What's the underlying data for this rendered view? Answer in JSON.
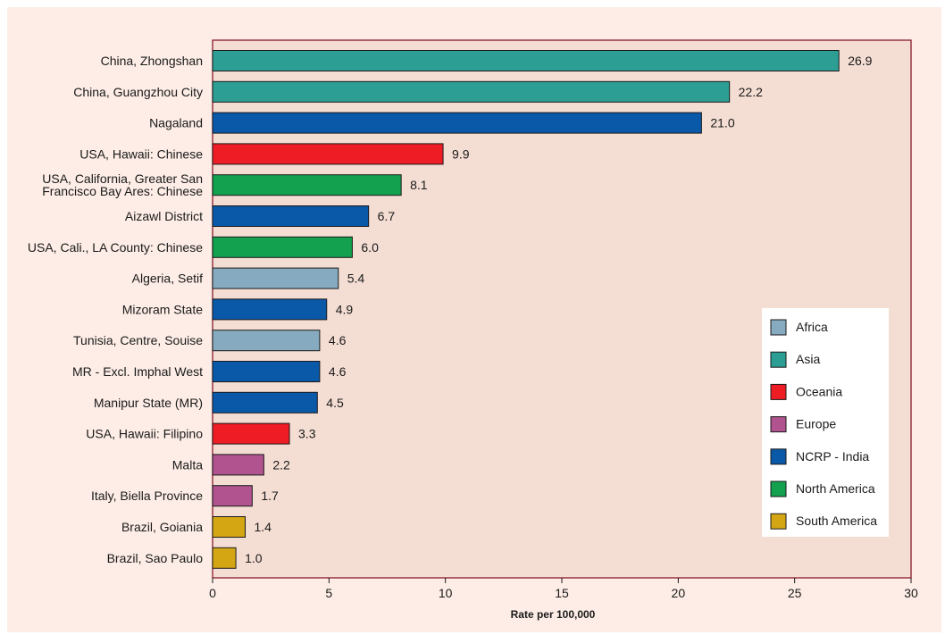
{
  "chart_data": {
    "type": "bar",
    "orientation": "horizontal",
    "title": "",
    "xlabel": "Rate per 100,000",
    "ylabel": "",
    "xlim": [
      0,
      30
    ],
    "xticks": [
      0,
      5,
      10,
      15,
      20,
      25,
      30
    ],
    "grid": false,
    "legend_position": "bottom-right",
    "colors": {
      "Africa": "#86aabf",
      "Asia": "#2d9e94",
      "Oceania": "#ee1c25",
      "Europe": "#b0538e",
      "NCRP - India": "#0a58a8",
      "North America": "#13a150",
      "South America": "#d4a614"
    },
    "legend": [
      "Africa",
      "Asia",
      "Oceania",
      "Europe",
      "NCRP - India",
      "North America",
      "South America"
    ],
    "bars": [
      {
        "label": [
          "China, Zhongshan"
        ],
        "value": 26.9,
        "value_label": "26.9",
        "region": "Asia"
      },
      {
        "label": [
          "China, Guangzhou City"
        ],
        "value": 22.2,
        "value_label": "22.2",
        "region": "Asia"
      },
      {
        "label": [
          "Nagaland"
        ],
        "value": 21.0,
        "value_label": "21.0",
        "region": "NCRP - India"
      },
      {
        "label": [
          "USA, Hawaii: Chinese"
        ],
        "value": 9.9,
        "value_label": "9.9",
        "region": "Oceania"
      },
      {
        "label": [
          "USA, California, Greater San",
          "Francisco Bay Ares: Chinese"
        ],
        "value": 8.1,
        "value_label": "8.1",
        "region": "North America"
      },
      {
        "label": [
          "Aizawl District"
        ],
        "value": 6.7,
        "value_label": "6.7",
        "region": "NCRP - India"
      },
      {
        "label": [
          "USA, Cali., LA County: Chinese"
        ],
        "value": 6.0,
        "value_label": "6.0",
        "region": "North America"
      },
      {
        "label": [
          "Algeria, Setif"
        ],
        "value": 5.4,
        "value_label": "5.4",
        "region": "Africa"
      },
      {
        "label": [
          "Mizoram State"
        ],
        "value": 4.9,
        "value_label": "4.9",
        "region": "NCRP - India"
      },
      {
        "label": [
          "Tunisia, Centre, Souise"
        ],
        "value": 4.6,
        "value_label": "4.6",
        "region": "Africa"
      },
      {
        "label": [
          "MR - Excl. Imphal West"
        ],
        "value": 4.6,
        "value_label": "4.6",
        "region": "NCRP - India"
      },
      {
        "label": [
          "Manipur State (MR)"
        ],
        "value": 4.5,
        "value_label": "4.5",
        "region": "NCRP - India"
      },
      {
        "label": [
          "USA, Hawaii: Filipino"
        ],
        "value": 3.3,
        "value_label": "3.3",
        "region": "Oceania"
      },
      {
        "label": [
          "Malta"
        ],
        "value": 2.2,
        "value_label": "2.2",
        "region": "Europe"
      },
      {
        "label": [
          "Italy, Biella Province"
        ],
        "value": 1.7,
        "value_label": "1.7",
        "region": "Europe"
      },
      {
        "label": [
          "Brazil, Goiania"
        ],
        "value": 1.4,
        "value_label": "1.4",
        "region": "South America"
      },
      {
        "label": [
          "Brazil, Sao Paulo"
        ],
        "value": 1.0,
        "value_label": "1.0",
        "region": "South America"
      }
    ]
  }
}
